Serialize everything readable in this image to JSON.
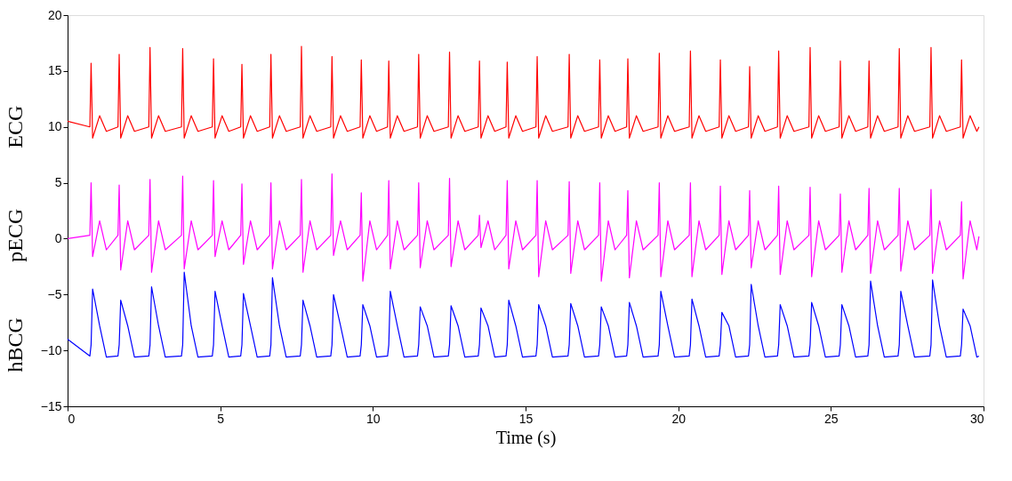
{
  "chart_data": {
    "type": "line",
    "xlabel": "Time (s)",
    "x": [
      0,
      0.73,
      0.77,
      0.82,
      1.05,
      1.27,
      1.65,
      1.69,
      1.74,
      1.97,
      2.19,
      2.66,
      2.7,
      2.75,
      2.98,
      3.2,
      3.73,
      3.77,
      3.82,
      4.05,
      4.27,
      4.74,
      4.78,
      4.83,
      5.06,
      5.28,
      5.67,
      5.71,
      5.76,
      5.99,
      6.21,
      6.62,
      6.66,
      6.71,
      6.94,
      7.16,
      7.62,
      7.66,
      7.71,
      7.94,
      8.16,
      8.62,
      8.66,
      8.71,
      8.94,
      9.16,
      9.58,
      9.62,
      9.67,
      9.9,
      10.12,
      10.48,
      10.52,
      10.57,
      10.8,
      11.02,
      11.46,
      11.5,
      11.55,
      11.78,
      12.0,
      12.47,
      12.51,
      12.56,
      12.79,
      13.01,
      13.45,
      13.49,
      13.54,
      13.77,
      13.99,
      14.36,
      14.4,
      14.45,
      14.68,
      14.9,
      15.34,
      15.38,
      15.43,
      15.66,
      15.88,
      16.39,
      16.43,
      16.48,
      16.71,
      16.93,
      17.39,
      17.43,
      17.48,
      17.71,
      17.93,
      18.31,
      18.35,
      18.4,
      18.63,
      18.85,
      19.34,
      19.38,
      19.43,
      19.66,
      19.88,
      20.36,
      20.4,
      20.45,
      20.68,
      20.9,
      21.34,
      21.38,
      21.43,
      21.66,
      21.88,
      22.3,
      22.34,
      22.39,
      22.62,
      22.84,
      23.25,
      23.29,
      23.34,
      23.57,
      23.79,
      24.28,
      24.32,
      24.37,
      24.6,
      24.82,
      25.27,
      25.31,
      25.36,
      25.59,
      25.81,
      26.21,
      26.25,
      26.3,
      26.53,
      26.75,
      27.2,
      27.24,
      27.29,
      27.52,
      27.74,
      28.24,
      28.28,
      28.33,
      28.56,
      28.78,
      29.24,
      29.28,
      29.33,
      29.56,
      29.78,
      29.85
    ],
    "series": [
      {
        "name": "ECG",
        "color": "#ff0000",
        "values": [
          10.5,
          10,
          15.7,
          9.0,
          11.0,
          9.6,
          10,
          16.5,
          9.0,
          11.0,
          9.6,
          10,
          17.1,
          9.0,
          11.0,
          9.6,
          10,
          17.0,
          9.0,
          11.0,
          9.6,
          10,
          16.1,
          9.0,
          11.0,
          9.6,
          10,
          15.6,
          9.0,
          11.0,
          9.6,
          10,
          16.5,
          9.0,
          11.0,
          9.6,
          10,
          17.2,
          9.0,
          11.0,
          9.6,
          10,
          16.3,
          9.0,
          11.0,
          9.6,
          10,
          16.0,
          9.0,
          11.0,
          9.6,
          10,
          15.9,
          9.0,
          11.0,
          9.6,
          10,
          16.5,
          9.0,
          11.0,
          9.6,
          10,
          16.7,
          9.0,
          11.0,
          9.6,
          10,
          15.9,
          9.0,
          11.0,
          9.6,
          10,
          15.8,
          9.0,
          11.0,
          9.6,
          10,
          16.3,
          9.0,
          11.0,
          9.6,
          10,
          16.5,
          9.0,
          11.0,
          9.6,
          10,
          16.0,
          9.0,
          11.0,
          9.6,
          10,
          16.1,
          9.0,
          11.0,
          9.6,
          10,
          16.6,
          9.0,
          11.0,
          9.6,
          10,
          16.8,
          9.0,
          11.0,
          9.6,
          10,
          16.0,
          9.0,
          11.0,
          9.6,
          10,
          15.4,
          9.0,
          11.0,
          9.6,
          10,
          16.8,
          9.0,
          11.0,
          9.6,
          10,
          17.1,
          9.0,
          11.0,
          9.6,
          10,
          15.9,
          9.0,
          11.0,
          9.6,
          10,
          15.9,
          9.0,
          11.0,
          9.6,
          10,
          17.0,
          9.0,
          11.0,
          9.6,
          10,
          17.1,
          9.0,
          11.0,
          9.6,
          10,
          16.0,
          9.0,
          11.0,
          9.6,
          10
        ]
      },
      {
        "name": "pECG",
        "color": "#ff00ff",
        "values": [
          0,
          0.3,
          5.0,
          -1.6,
          1.6,
          -1.0,
          0.3,
          4.8,
          -2.8,
          1.6,
          -1.0,
          0.3,
          5.3,
          -3.0,
          1.6,
          -1.0,
          0.3,
          5.6,
          -2.7,
          1.6,
          -1.0,
          0.3,
          5.2,
          -1.6,
          1.6,
          -1.0,
          0.3,
          4.9,
          -2.3,
          1.6,
          -1.0,
          0.3,
          5.0,
          -2.7,
          1.6,
          -1.0,
          0.3,
          5.3,
          -3.0,
          1.6,
          -1.0,
          0.3,
          5.8,
          -1.5,
          1.6,
          -1.0,
          0.3,
          4.1,
          -3.8,
          1.6,
          -1.0,
          0.3,
          5.2,
          -2.7,
          1.6,
          -1.0,
          0.3,
          5.0,
          -2.6,
          1.6,
          -1.0,
          0.3,
          5.4,
          -2.5,
          1.6,
          -1.0,
          0.3,
          2.1,
          -0.8,
          1.6,
          -1.0,
          0.3,
          5.2,
          -2.7,
          1.6,
          -1.0,
          0.3,
          5.2,
          -3.4,
          1.6,
          -1.0,
          0.3,
          5.1,
          -3.1,
          1.6,
          -1.0,
          0.3,
          5.0,
          -3.8,
          1.6,
          -1.0,
          0.3,
          4.3,
          -3.5,
          1.6,
          -1.0,
          0.3,
          5.0,
          -3.4,
          1.6,
          -1.0,
          0.3,
          5.0,
          -3.4,
          1.6,
          -1.0,
          0.3,
          4.7,
          -3.2,
          1.6,
          -1.0,
          0.3,
          4.3,
          -2.6,
          1.6,
          -1.0,
          0.3,
          4.7,
          -3.2,
          1.6,
          -1.0,
          0.3,
          4.6,
          -3.4,
          1.6,
          -1.0,
          0.3,
          4.0,
          -3.0,
          1.6,
          -1.0,
          0.3,
          4.5,
          -3.1,
          1.6,
          -1.0,
          0.3,
          4.5,
          -2.9,
          1.6,
          -1.0,
          0.3,
          4.4,
          -3.1,
          1.6,
          -1.0,
          0.3,
          3.3,
          -3.6,
          1.6,
          -1.0,
          0.2
        ]
      },
      {
        "name": "hBCG",
        "color": "#0000ff",
        "values": [
          -9.0,
          -10.5,
          -9.5,
          -4.5,
          -7.8,
          -10.6,
          -10.5,
          -9.5,
          -5.5,
          -7.8,
          -10.6,
          -10.5,
          -9.5,
          -4.3,
          -7.8,
          -10.6,
          -10.5,
          -9.5,
          -3.0,
          -7.8,
          -10.6,
          -10.5,
          -9.5,
          -4.7,
          -7.8,
          -10.6,
          -10.5,
          -9.5,
          -4.9,
          -7.8,
          -10.6,
          -10.5,
          -9.5,
          -3.5,
          -7.8,
          -10.6,
          -10.5,
          -9.5,
          -5.5,
          -7.8,
          -10.6,
          -10.5,
          -9.5,
          -5.0,
          -7.8,
          -10.6,
          -10.5,
          -9.5,
          -5.9,
          -7.8,
          -10.6,
          -10.5,
          -9.5,
          -4.7,
          -7.8,
          -10.6,
          -10.5,
          -9.5,
          -6.1,
          -7.8,
          -10.6,
          -10.5,
          -9.5,
          -6.0,
          -7.8,
          -10.6,
          -10.5,
          -9.5,
          -6.2,
          -7.8,
          -10.6,
          -10.5,
          -9.5,
          -5.5,
          -7.8,
          -10.6,
          -10.5,
          -9.5,
          -5.9,
          -7.8,
          -10.6,
          -10.5,
          -9.5,
          -5.8,
          -7.8,
          -10.6,
          -10.5,
          -9.5,
          -6.1,
          -7.8,
          -10.6,
          -10.5,
          -9.5,
          -5.7,
          -7.8,
          -10.6,
          -10.5,
          -9.5,
          -4.7,
          -7.8,
          -10.6,
          -10.5,
          -9.5,
          -5.4,
          -7.8,
          -10.6,
          -10.5,
          -9.5,
          -6.6,
          -7.8,
          -10.6,
          -10.5,
          -9.5,
          -4.1,
          -7.8,
          -10.6,
          -10.5,
          -9.5,
          -5.9,
          -7.8,
          -10.6,
          -10.5,
          -9.5,
          -5.7,
          -7.8,
          -10.6,
          -10.5,
          -9.5,
          -5.9,
          -7.8,
          -10.6,
          -10.5,
          -9.5,
          -3.8,
          -7.8,
          -10.6,
          -10.5,
          -9.5,
          -4.7,
          -7.8,
          -10.6,
          -10.5,
          -9.5,
          -3.7,
          -7.8,
          -10.6,
          -10.5,
          -9.5,
          -6.3,
          -7.8,
          -10.6,
          -10.5
        ]
      }
    ],
    "xlim": [
      0,
      30
    ],
    "xticks": [
      0,
      5,
      10,
      15,
      20,
      25,
      30
    ],
    "ylim": [
      -15,
      20
    ],
    "yticks": [
      {
        "value": -15,
        "label": "−15"
      },
      {
        "value": -10,
        "label": "−10"
      },
      {
        "value": -5,
        "label": "−5"
      },
      0,
      5,
      10,
      15,
      20
    ],
    "grid": false,
    "marker": "none",
    "line_style": "solid"
  }
}
